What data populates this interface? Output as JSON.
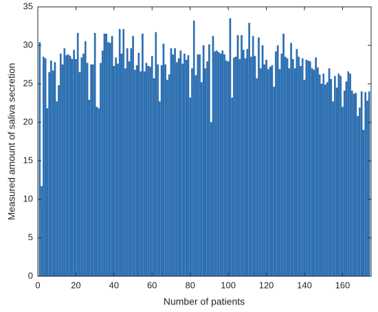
{
  "chart_data": {
    "type": "bar",
    "x_label": "Number of patients",
    "y_label": "Measured amount of saliva secretion",
    "color": "#2b72b8",
    "xlim": [
      0,
      175
    ],
    "xticks": [
      0,
      20,
      40,
      60,
      80,
      100,
      120,
      140,
      160
    ],
    "ylim": [
      0,
      35
    ],
    "yticks": [
      0,
      5,
      10,
      15,
      20,
      25,
      30,
      35
    ],
    "x": [
      1,
      2,
      3,
      4,
      5,
      6,
      7,
      8,
      9,
      10,
      11,
      12,
      13,
      14,
      15,
      16,
      17,
      18,
      19,
      20,
      21,
      22,
      23,
      24,
      25,
      26,
      27,
      28,
      29,
      30,
      31,
      32,
      33,
      34,
      35,
      36,
      37,
      38,
      39,
      40,
      41,
      42,
      43,
      44,
      45,
      46,
      47,
      48,
      49,
      50,
      51,
      52,
      53,
      54,
      55,
      56,
      57,
      58,
      59,
      60,
      61,
      62,
      63,
      64,
      65,
      66,
      67,
      68,
      69,
      70,
      71,
      72,
      73,
      74,
      75,
      76,
      77,
      78,
      79,
      80,
      81,
      82,
      83,
      84,
      85,
      86,
      87,
      88,
      89,
      90,
      91,
      92,
      93,
      94,
      95,
      96,
      97,
      98,
      99,
      100,
      101,
      102,
      103,
      104,
      105,
      106,
      107,
      108,
      109,
      110,
      111,
      112,
      113,
      114,
      115,
      116,
      117,
      118,
      119,
      120,
      121,
      122,
      123,
      124,
      125,
      126,
      127,
      128,
      129,
      130,
      131,
      132,
      133,
      134,
      135,
      136,
      137,
      138,
      139,
      140,
      141,
      142,
      143,
      144,
      145,
      146,
      147,
      148,
      149,
      150,
      151,
      152,
      153,
      154,
      155,
      156,
      157,
      158,
      159,
      160,
      161,
      162,
      163,
      164,
      165,
      166,
      167,
      168,
      169,
      170,
      171,
      172,
      173,
      174
    ],
    "values": [
      30.4,
      11.7,
      28.5,
      28.3,
      21.8,
      26.5,
      28,
      26.7,
      27.8,
      22.7,
      24.8,
      28.9,
      27.5,
      29.6,
      28.7,
      28.8,
      28.6,
      28.2,
      29.4,
      28.2,
      31.6,
      26.5,
      28.4,
      28.9,
      30.5,
      27.7,
      22.9,
      27.5,
      27.5,
      31.6,
      22.0,
      21.8,
      27.7,
      29.3,
      31.5,
      31.5,
      30.4,
      30.3,
      31.2,
      27.3,
      28.4,
      27.6,
      32.1,
      28.9,
      32.1,
      27.0,
      29.6,
      27.9,
      29.6,
      31.2,
      26.8,
      27.4,
      29.0,
      26.6,
      31.5,
      26.6,
      27.7,
      27.3,
      27.2,
      28.6,
      25.7,
      31.7,
      27.5,
      22.7,
      27.4,
      30.2,
      27.5,
      25.5,
      26.2,
      29.6,
      28.8,
      29.6,
      27.8,
      28.3,
      29.3,
      27.6,
      28.9,
      28.1,
      28.7,
      23.2,
      27.0,
      33.2,
      26.1,
      28.8,
      28.8,
      25.2,
      30.0,
      27.0,
      27.9,
      30.1,
      20.0,
      31.2,
      29.2,
      29.3,
      29.1,
      28.9,
      29.3,
      28.8,
      28.0,
      27.9,
      33.5,
      23.2,
      28.4,
      28.5,
      31.3,
      28.2,
      31.3,
      29.4,
      28.3,
      29.5,
      32.9,
      28.5,
      31.2,
      28.6,
      25.7,
      31.0,
      27.0,
      30.0,
      27.5,
      28.1,
      26.9,
      27.2,
      27.4,
      24.6,
      29.2,
      30.0,
      26.9,
      28.9,
      31.5,
      28.5,
      28.3,
      27.0,
      30.3,
      28.2,
      27.0,
      29.5,
      28.5,
      27.3,
      28.3,
      25.5,
      28.1,
      28.0,
      27.9,
      27.0,
      26.8,
      28.4,
      27.1,
      26.2,
      25.0,
      26.3,
      24.9,
      25.2,
      27.0,
      25.6,
      22.7,
      26.0,
      24.5,
      26.3,
      26.0,
      22.0,
      24.1,
      25.3,
      26.6,
      26.3,
      24.1,
      23.7,
      23.8,
      20.8,
      21.9,
      24.0,
      19.0,
      23.9,
      22.8,
      24.0
    ]
  }
}
